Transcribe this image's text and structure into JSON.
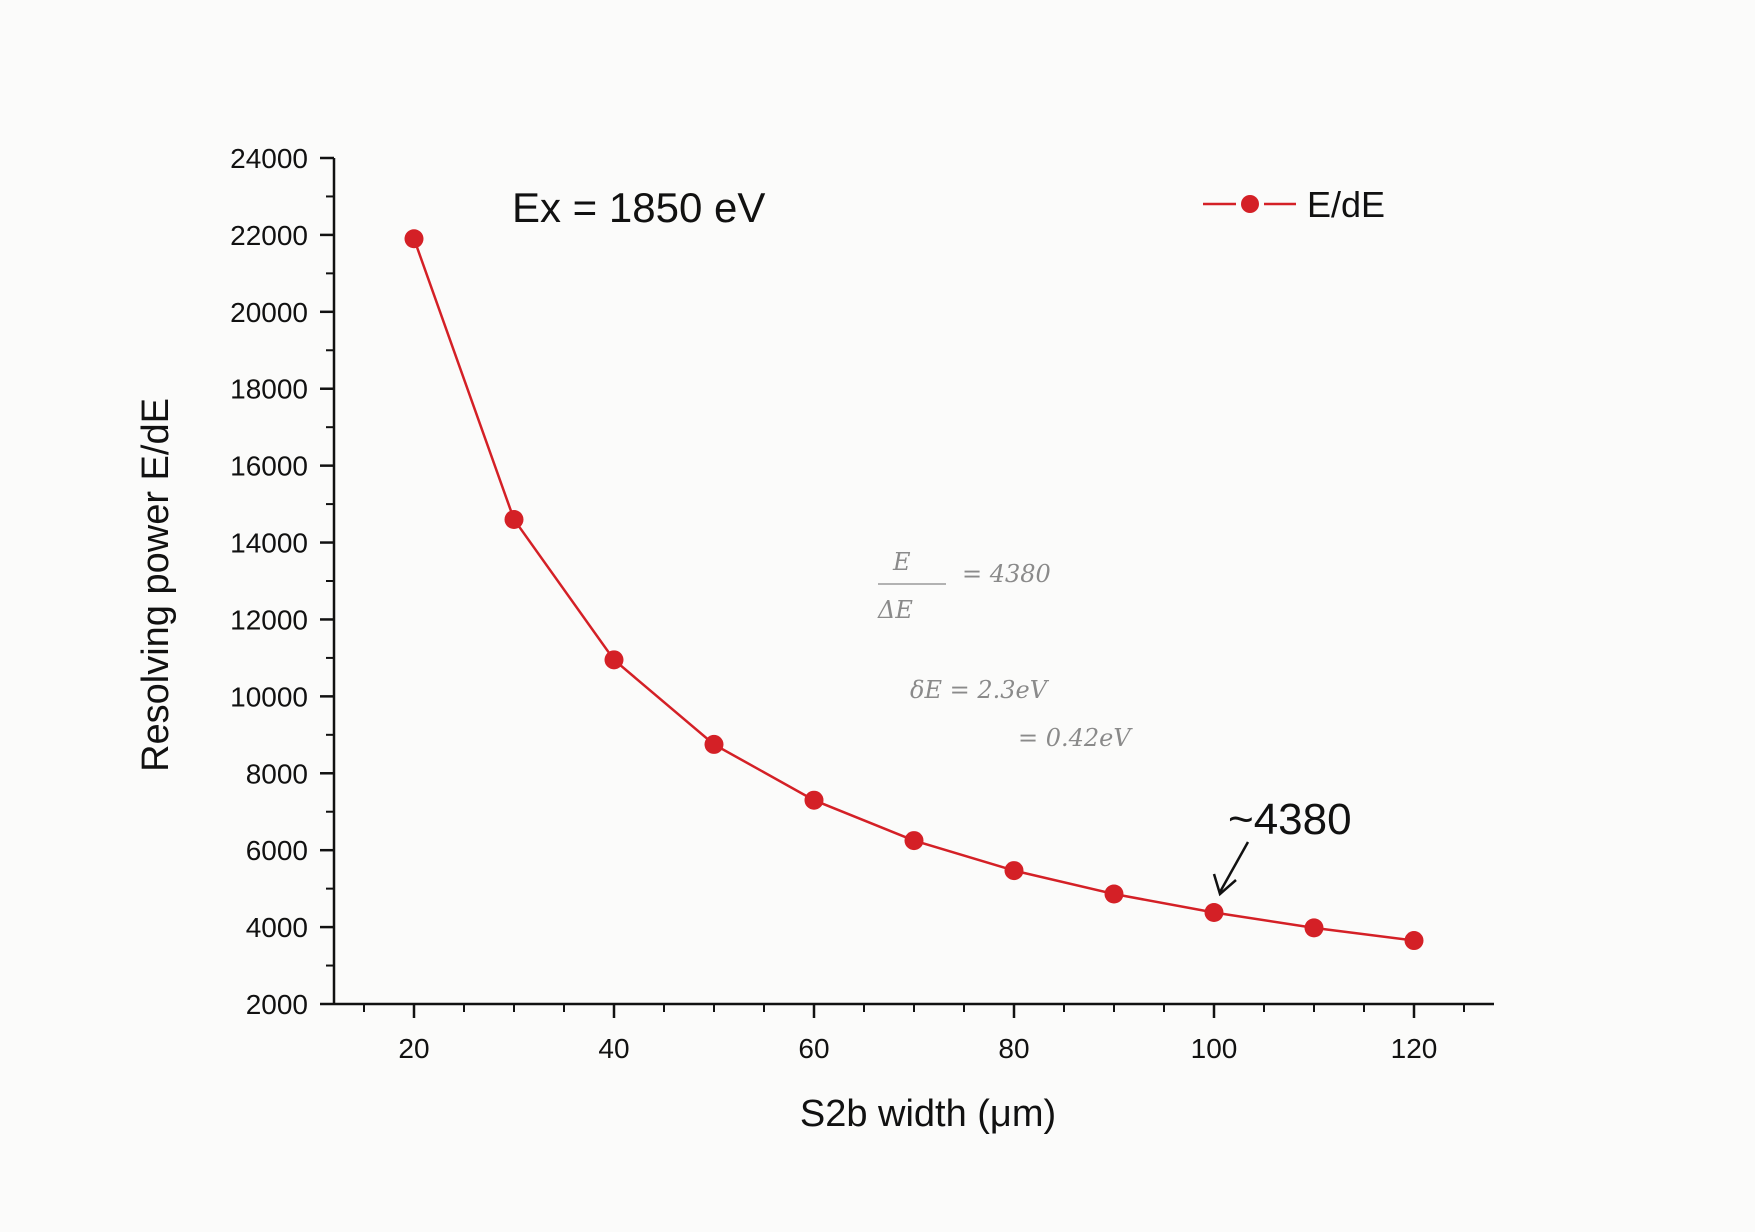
{
  "chart_data": {
    "type": "line",
    "xlabel": "S2b width (μm)",
    "ylabel": "Resolving power E/dE",
    "xlim": [
      12,
      128
    ],
    "ylim": [
      2000,
      24000
    ],
    "x_ticks": [
      20,
      40,
      60,
      80,
      100,
      120
    ],
    "y_ticks": [
      2000,
      4000,
      6000,
      8000,
      10000,
      12000,
      14000,
      16000,
      18000,
      20000,
      22000,
      24000
    ],
    "grid": false,
    "legend_position": "top-right",
    "series": [
      {
        "name": "E/dE",
        "color": "#d42026",
        "marker": "circle",
        "x": [
          20,
          30,
          40,
          50,
          60,
          70,
          80,
          90,
          100,
          110,
          120
        ],
        "y": [
          21900,
          14600,
          10950,
          8750,
          7300,
          6250,
          5470,
          4860,
          4380,
          3980,
          3650
        ]
      }
    ],
    "annotations": {
      "energy": "Ex = 1850 eV",
      "callout_value": "~4380",
      "callout_target": {
        "x": 100,
        "y": 4380
      },
      "handwritten": {
        "numerator": "E",
        "denominator": "ΔE",
        "eq1": "= 4380",
        "eq2": "δE = 2.3eV",
        "eq3": "= 0.42eV"
      }
    }
  }
}
